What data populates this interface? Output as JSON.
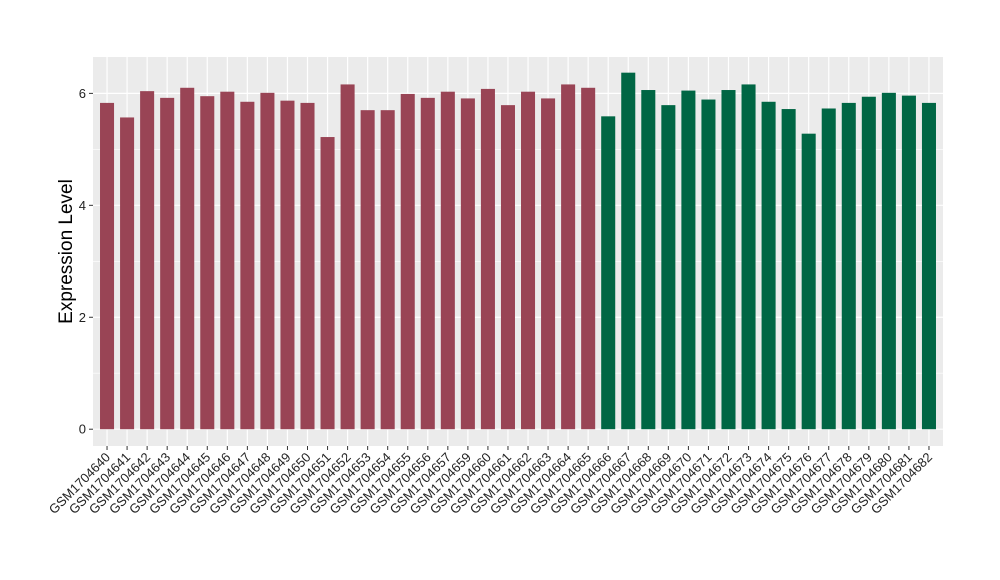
{
  "chart_data": {
    "type": "bar",
    "ylabel": "Expression Level",
    "xlabel": "",
    "title": "",
    "ylim": [
      -0.3,
      6.65
    ],
    "yticks": [
      0,
      2,
      4,
      6
    ],
    "grid": true,
    "background": "#EBEBEB",
    "gridline_color": "#FFFFFF",
    "categories": [
      "GSM1704640",
      "GSM1704641",
      "GSM1704642",
      "GSM1704643",
      "GSM1704644",
      "GSM1704645",
      "GSM1704646",
      "GSM1704647",
      "GSM1704648",
      "GSM1704649",
      "GSM1704650",
      "GSM1704651",
      "GSM1704652",
      "GSM1704653",
      "GSM1704654",
      "GSM1704655",
      "GSM1704656",
      "GSM1704657",
      "GSM1704659",
      "GSM1704660",
      "GSM1704661",
      "GSM1704662",
      "GSM1704663",
      "GSM1704664",
      "GSM1704665",
      "GSM1704666",
      "GSM1704667",
      "GSM1704668",
      "GSM1704669",
      "GSM1704670",
      "GSM1704671",
      "GSM1704672",
      "GSM1704673",
      "GSM1704674",
      "GSM1704675",
      "GSM1704676",
      "GSM1704677",
      "GSM1704678",
      "GSM1704679",
      "GSM1704680",
      "GSM1704681",
      "GSM1704682"
    ],
    "values": [
      5.83,
      5.57,
      6.04,
      5.92,
      6.1,
      5.95,
      6.03,
      5.85,
      6.01,
      5.87,
      5.83,
      5.22,
      6.16,
      5.7,
      5.7,
      5.99,
      5.92,
      6.03,
      5.91,
      6.08,
      5.79,
      6.03,
      5.91,
      6.16,
      6.1,
      5.59,
      6.37,
      6.06,
      5.79,
      6.05,
      5.89,
      6.06,
      6.16,
      5.85,
      5.72,
      5.28,
      5.73,
      5.83,
      5.94,
      6.01,
      5.96,
      5.83
    ],
    "bar_colors": [
      "#994455",
      "#994455",
      "#994455",
      "#994455",
      "#994455",
      "#994455",
      "#994455",
      "#994455",
      "#994455",
      "#994455",
      "#994455",
      "#994455",
      "#994455",
      "#994455",
      "#994455",
      "#994455",
      "#994455",
      "#994455",
      "#994455",
      "#994455",
      "#994455",
      "#994455",
      "#994455",
      "#994455",
      "#994455",
      "#006644",
      "#006644",
      "#006644",
      "#006644",
      "#006644",
      "#006644",
      "#006644",
      "#006644",
      "#006644",
      "#006644",
      "#006644",
      "#006644",
      "#006644",
      "#006644",
      "#006644",
      "#006644",
      "#006644"
    ]
  }
}
